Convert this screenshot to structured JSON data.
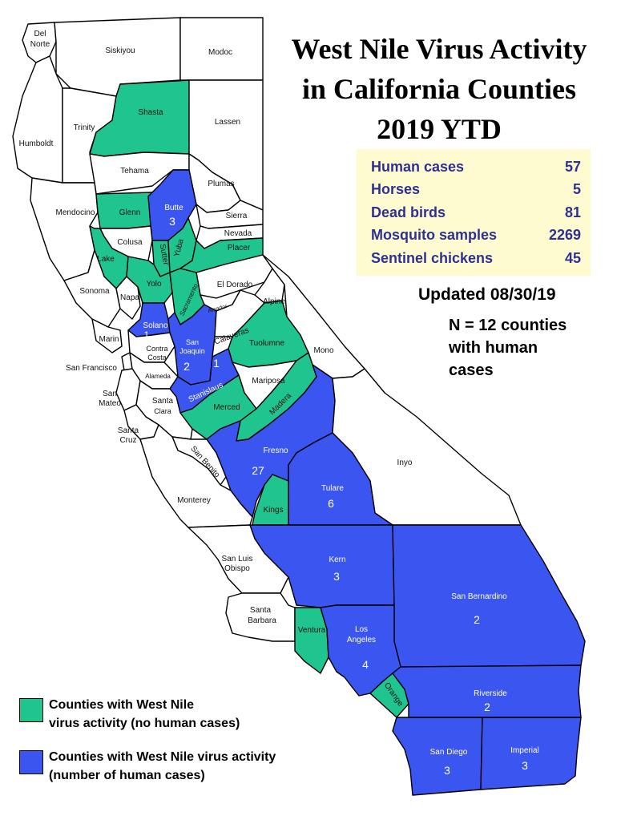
{
  "title": {
    "line1": "West Nile Virus Activity",
    "line2": "in California Counties",
    "line3": "2019 YTD"
  },
  "stats": [
    {
      "label": "Human cases",
      "value": "57"
    },
    {
      "label": "Horses",
      "value": "5"
    },
    {
      "label": "Dead birds",
      "value": "81"
    },
    {
      "label": "Mosquito samples",
      "value": "2269"
    },
    {
      "label": "Sentinel chickens",
      "value": "45"
    }
  ],
  "updated": {
    "label": "Updated",
    "date": "08/30/19"
  },
  "ncount": {
    "line1_prefix": "N = ",
    "count": "12",
    "line1_suffix": "counties",
    "line2": "with human",
    "line3": "cases"
  },
  "legend": {
    "green": {
      "color": "#1fc48e",
      "line1": "Counties with West Nile",
      "line2": "virus activity (no human cases)"
    },
    "blue": {
      "color": "#3b55f0",
      "line1": "Counties with West Nile virus activity",
      "line2": "(number of human cases)"
    }
  },
  "counties": {
    "del_norte": {
      "name_line1": "Del",
      "name_line2": "Norte"
    },
    "siskiyou": {
      "name": "Siskiyou"
    },
    "modoc": {
      "name": "Modoc"
    },
    "humboldt": {
      "name": "Humboldt"
    },
    "trinity": {
      "name": "Trinity"
    },
    "shasta": {
      "name": "Shasta"
    },
    "lassen": {
      "name": "Lassen"
    },
    "tehama": {
      "name": "Tehama"
    },
    "plumas": {
      "name": "Plumas"
    },
    "mendocino": {
      "name": "Mendocino"
    },
    "glenn": {
      "name": "Glenn"
    },
    "butte": {
      "name": "Butte",
      "cases": "3"
    },
    "sierra": {
      "name": "Sierra"
    },
    "nevada": {
      "name": "Nevada"
    },
    "colusa": {
      "name": "Colusa"
    },
    "sutter": {
      "name": "Sutter"
    },
    "yuba": {
      "name": "Yuba"
    },
    "placer": {
      "name": "Placer"
    },
    "lake": {
      "name": "Lake"
    },
    "sonoma": {
      "name": "Sonoma"
    },
    "napa": {
      "name": "Napa"
    },
    "yolo": {
      "name": "Yolo"
    },
    "el_dorado": {
      "name": "El Dorado"
    },
    "sacramento": {
      "name": "Sacramento"
    },
    "amador": {
      "name": "Amador"
    },
    "alpine": {
      "name": "Alpine"
    },
    "solano": {
      "name": "Solano",
      "cases": "1"
    },
    "marin": {
      "name": "Marin"
    },
    "contra_costa": {
      "name_line1": "Contra",
      "name_line2": "Costa"
    },
    "san_joaquin": {
      "name_line1": "San",
      "name_line2": "Joaquin",
      "cases": "2"
    },
    "calaveras": {
      "name": "Calaveras"
    },
    "tuolumne": {
      "name": "Tuolumne"
    },
    "mono": {
      "name": "Mono"
    },
    "san_francisco": {
      "name": "San Francisco"
    },
    "alameda": {
      "name": "Alameda"
    },
    "stanislaus": {
      "name": "Stanislaus",
      "cases": "1"
    },
    "mariposa": {
      "name": "Mariposa"
    },
    "san_mateo": {
      "name_line1": "San",
      "name_line2": "Mateo"
    },
    "santa_clara": {
      "name_line1": "Santa",
      "name_line2": "Clara"
    },
    "merced": {
      "name": "Merced"
    },
    "madera": {
      "name": "Madera"
    },
    "santa_cruz": {
      "name_line1": "Santa",
      "name_line2": "Cruz"
    },
    "san_benito": {
      "name": "San Benito"
    },
    "fresno": {
      "name": "Fresno",
      "cases": "27"
    },
    "inyo": {
      "name": "Inyo"
    },
    "tulare": {
      "name": "Tulare",
      "cases": "6"
    },
    "kings": {
      "name": "Kings"
    },
    "monterey": {
      "name": "Monterey"
    },
    "san_luis_obispo": {
      "name_line1": "San Luis",
      "name_line2": "Obispo"
    },
    "kern": {
      "name": "Kern",
      "cases": "3"
    },
    "san_bernardino": {
      "name": "San Bernardino",
      "cases": "2"
    },
    "santa_barbara": {
      "name_line1": "Santa",
      "name_line2": "Barbara"
    },
    "ventura": {
      "name": "Ventura"
    },
    "los_angeles": {
      "name_line1": "Los",
      "name_line2": "Angeles",
      "cases": "4"
    },
    "orange": {
      "name": "Orange"
    },
    "riverside": {
      "name": "Riverside",
      "cases": "2"
    },
    "san_diego": {
      "name": "San Diego",
      "cases": "3"
    },
    "imperial": {
      "name": "Imperial",
      "cases": "3"
    }
  }
}
